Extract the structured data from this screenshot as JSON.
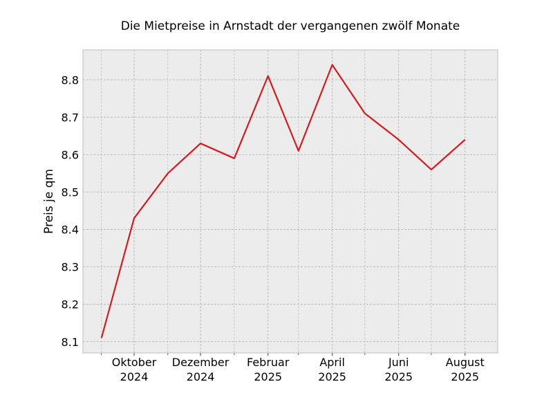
{
  "chart_data": {
    "type": "line",
    "title": "Die Mietpreise in Arnstadt der vergangenen zwölf Monate",
    "xlabel": "",
    "ylabel": "Preis je qm",
    "x": [
      "2024-09",
      "2024-10",
      "2024-11",
      "2024-12",
      "2025-01",
      "2025-02",
      "2025-03",
      "2025-04",
      "2025-05",
      "2025-06",
      "2025-07",
      "2025-08"
    ],
    "series": [
      {
        "values": [
          8.11,
          8.43,
          8.55,
          8.63,
          8.59,
          8.81,
          8.61,
          8.84,
          8.71,
          8.64,
          8.56,
          8.64
        ],
        "color": "#d7191c"
      }
    ],
    "x_tick_labels": [
      {
        "x": "2024-10",
        "line1": "Oktober",
        "line2": "2024"
      },
      {
        "x": "2024-12",
        "line1": "Dezember",
        "line2": "2024"
      },
      {
        "x": "2025-02",
        "line1": "Februar",
        "line2": "2025"
      },
      {
        "x": "2025-04",
        "line1": "April",
        "line2": "2025"
      },
      {
        "x": "2025-06",
        "line1": "Juni",
        "line2": "2025"
      },
      {
        "x": "2025-08",
        "line1": "August",
        "line2": "2025"
      }
    ],
    "x_minor_ticks": [
      "2024-09",
      "2024-11",
      "2025-01",
      "2025-03",
      "2025-05",
      "2025-07"
    ],
    "xlim": [
      "2024-08-15",
      "2025-08-31"
    ],
    "y_ticks": [
      8.1,
      8.2,
      8.3,
      8.4,
      8.5,
      8.6,
      8.7,
      8.8
    ],
    "ylim": [
      8.07,
      8.88
    ],
    "grid": true,
    "colors": {
      "plot_background": "#ececec",
      "grid": "#b0b0b0",
      "frame": "#bcbcbc"
    }
  }
}
